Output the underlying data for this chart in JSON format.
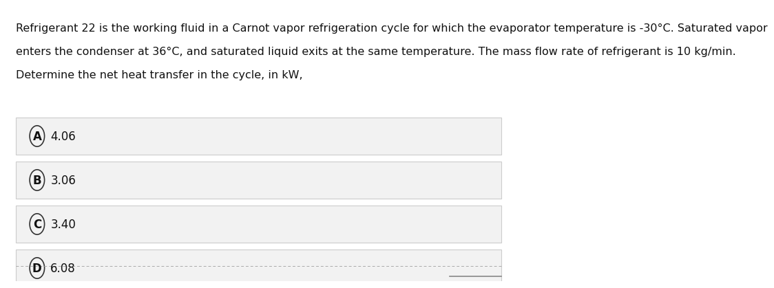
{
  "question_text_lines": [
    "Refrigerant 22 is the working fluid in a Carnot vapor refrigeration cycle for which the evaporator temperature is -30°C. Saturated vapor",
    "enters the condenser at 36°C, and saturated liquid exits at the same temperature. The mass flow rate of refrigerant is 10 kg/min.",
    "Determine the net heat transfer in the cycle, in kW,"
  ],
  "options": [
    {
      "label": "A",
      "value": "4.06"
    },
    {
      "label": "B",
      "value": "3.06"
    },
    {
      "label": "C",
      "value": "3.40"
    },
    {
      "label": "D",
      "value": "6.08"
    }
  ],
  "bg_color": "#ffffff",
  "option_bg_color": "#f2f2f2",
  "option_border_color": "#cccccc",
  "text_color": "#111111",
  "circle_color": "#333333",
  "font_size_question": 11.5,
  "font_size_option": 12,
  "dashed_line_color": "#aaaaaa",
  "footer_line_color": "#888888"
}
